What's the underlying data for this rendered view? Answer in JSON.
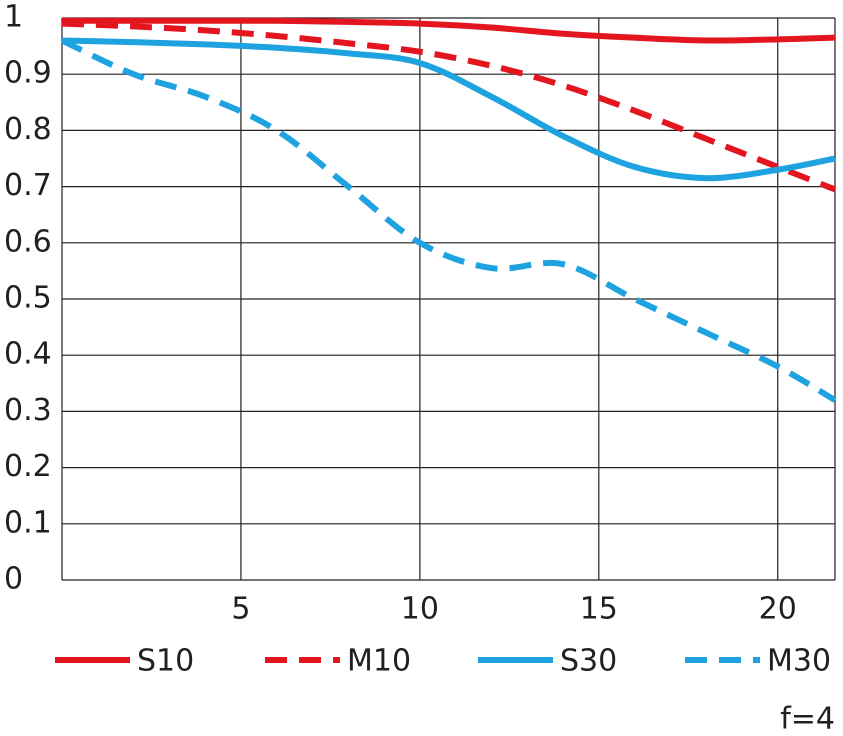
{
  "chart_data": {
    "type": "line",
    "annotation": "f=4",
    "x": [
      0,
      2,
      4,
      6,
      8,
      10,
      12,
      14,
      16,
      18,
      20,
      21.6
    ],
    "series": [
      {
        "name": "S10",
        "color": "#e3151f",
        "style": "solid",
        "values": [
          0.995,
          0.995,
          0.995,
          0.995,
          0.993,
          0.99,
          0.983,
          0.972,
          0.965,
          0.96,
          0.962,
          0.965
        ]
      },
      {
        "name": "M10",
        "color": "#e3151f",
        "style": "dashed",
        "values": [
          0.99,
          0.985,
          0.978,
          0.968,
          0.955,
          0.94,
          0.915,
          0.88,
          0.835,
          0.785,
          0.735,
          0.695
        ]
      },
      {
        "name": "S30",
        "color": "#1ea3e0",
        "style": "solid",
        "values": [
          0.96,
          0.957,
          0.953,
          0.947,
          0.937,
          0.92,
          0.86,
          0.79,
          0.735,
          0.715,
          0.73,
          0.75
        ]
      },
      {
        "name": "M30",
        "color": "#1ea3e0",
        "style": "dashed",
        "values": [
          0.96,
          0.9,
          0.86,
          0.8,
          0.7,
          0.6,
          0.555,
          0.562,
          0.5,
          0.44,
          0.38,
          0.32
        ]
      }
    ],
    "xlim": [
      0,
      21.6
    ],
    "xticks": [
      5,
      10,
      15,
      20
    ],
    "ylim": [
      0,
      1
    ],
    "yticks": [
      0,
      0.1,
      0.2,
      0.3,
      0.4,
      0.5,
      0.6,
      0.7,
      0.8,
      0.9,
      1
    ],
    "grid": true
  }
}
